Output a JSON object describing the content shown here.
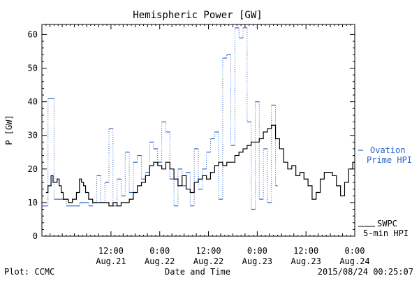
{
  "chart_data": {
    "type": "line",
    "title": "Hemispheric Power [GW]",
    "xlabel": "Date and Time",
    "ylabel": "P [GW]",
    "ylim": [
      0,
      63
    ],
    "yticks": [
      0,
      10,
      20,
      30,
      40,
      50,
      60
    ],
    "x_unit": "hours after 2015-08-20 19:00",
    "xlim": [
      0,
      77
    ],
    "xticks": [
      {
        "x": 17,
        "time": "12:00",
        "date": "Aug.21"
      },
      {
        "x": 29,
        "time": "0:00",
        "date": "Aug.22"
      },
      {
        "x": 41,
        "time": "12:00",
        "date": "Aug.22"
      },
      {
        "x": 53,
        "time": "0:00",
        "date": "Aug.23"
      },
      {
        "x": 65,
        "time": "12:00",
        "date": "Aug.23"
      },
      {
        "x": 77,
        "time": "0:00",
        "date": "Aug.24"
      }
    ],
    "grid": false,
    "legend_placement": "right",
    "series": [
      {
        "name": "Ovation Prime HPI",
        "label_lines": [
          "Ovation",
          "Prime HPI"
        ],
        "style": "dashed-blue steps with dotted risers",
        "color": "#2b64c8",
        "points": [
          [
            0,
            9
          ],
          [
            1.5,
            41
          ],
          [
            3,
            11
          ],
          [
            4.5,
            11
          ],
          [
            6,
            9
          ],
          [
            8,
            9
          ],
          [
            9.3,
            10
          ],
          [
            10.7,
            10
          ],
          [
            11.5,
            9
          ],
          [
            12.5,
            10
          ],
          [
            13.5,
            18
          ],
          [
            14.5,
            10
          ],
          [
            15.5,
            16
          ],
          [
            16.5,
            32
          ],
          [
            17.5,
            9
          ],
          [
            18.5,
            17
          ],
          [
            19.5,
            12
          ],
          [
            20.5,
            25
          ],
          [
            21.5,
            13
          ],
          [
            22.5,
            22
          ],
          [
            23.5,
            24
          ],
          [
            24.5,
            17
          ],
          [
            25.5,
            19
          ],
          [
            26.5,
            28
          ],
          [
            27.5,
            26
          ],
          [
            28.5,
            22
          ],
          [
            29.5,
            34
          ],
          [
            30.5,
            31
          ],
          [
            31.5,
            17
          ],
          [
            32.5,
            9
          ],
          [
            33.5,
            20
          ],
          [
            34.5,
            15
          ],
          [
            35.5,
            19
          ],
          [
            36.5,
            9
          ],
          [
            37.5,
            26
          ],
          [
            38.5,
            14
          ],
          [
            39.5,
            20
          ],
          [
            40.5,
            25
          ],
          [
            41.5,
            29
          ],
          [
            42.5,
            31
          ],
          [
            43.5,
            11
          ],
          [
            44.5,
            53
          ],
          [
            45.5,
            54
          ],
          [
            46.5,
            27
          ],
          [
            47.5,
            62
          ],
          [
            48.5,
            59
          ],
          [
            49.5,
            62
          ],
          [
            50.5,
            34
          ],
          [
            51.5,
            8
          ],
          [
            52.5,
            40
          ],
          [
            53.5,
            11
          ],
          [
            54.5,
            26
          ],
          [
            55.5,
            10
          ],
          [
            56.5,
            39
          ],
          [
            57.5,
            15
          ],
          [
            58,
            15
          ]
        ]
      },
      {
        "name": "SWPC 5-min HPI",
        "label_lines": [
          "SWPC",
          "5-min HPI"
        ],
        "style": "solid black line",
        "color": "#000000",
        "points": [
          [
            1,
            13
          ],
          [
            2,
            15
          ],
          [
            2.5,
            18
          ],
          [
            3,
            16
          ],
          [
            3.5,
            16
          ],
          [
            4,
            17
          ],
          [
            4.5,
            15
          ],
          [
            5,
            13
          ],
          [
            5.5,
            11
          ],
          [
            6,
            11
          ],
          [
            7,
            10
          ],
          [
            8,
            11
          ],
          [
            9,
            13
          ],
          [
            9.5,
            17
          ],
          [
            10,
            16
          ],
          [
            10.5,
            15
          ],
          [
            11,
            13
          ],
          [
            12,
            11
          ],
          [
            13,
            10
          ],
          [
            14,
            10
          ],
          [
            15,
            10
          ],
          [
            16,
            10
          ],
          [
            17,
            9
          ],
          [
            18,
            10
          ],
          [
            19,
            9
          ],
          [
            20,
            10
          ],
          [
            21,
            10
          ],
          [
            22,
            11
          ],
          [
            23,
            13
          ],
          [
            24,
            15
          ],
          [
            25,
            16
          ],
          [
            26,
            18
          ],
          [
            27,
            21
          ],
          [
            28,
            22
          ],
          [
            29,
            21
          ],
          [
            30,
            20
          ],
          [
            31,
            22
          ],
          [
            32,
            20
          ],
          [
            33,
            17
          ],
          [
            34,
            15
          ],
          [
            35,
            18
          ],
          [
            36,
            14
          ],
          [
            37,
            13
          ],
          [
            38,
            16
          ],
          [
            39,
            17
          ],
          [
            40,
            18
          ],
          [
            41,
            17
          ],
          [
            42,
            19
          ],
          [
            43,
            21
          ],
          [
            44,
            22
          ],
          [
            45,
            21
          ],
          [
            46,
            22
          ],
          [
            47,
            22
          ],
          [
            48,
            24
          ],
          [
            49,
            25
          ],
          [
            50,
            26
          ],
          [
            51,
            27
          ],
          [
            52,
            28
          ],
          [
            53,
            28
          ],
          [
            54,
            29
          ],
          [
            55,
            31
          ],
          [
            56,
            32
          ],
          [
            57,
            33
          ],
          [
            58,
            29
          ],
          [
            59,
            26
          ],
          [
            60,
            22
          ],
          [
            61,
            20
          ],
          [
            62,
            21
          ],
          [
            63,
            18
          ],
          [
            64,
            19
          ],
          [
            65,
            17
          ],
          [
            66,
            15
          ],
          [
            67,
            11
          ],
          [
            68,
            13
          ],
          [
            69,
            17
          ],
          [
            70,
            19
          ],
          [
            71,
            19
          ],
          [
            72,
            18
          ],
          [
            73,
            15
          ],
          [
            74,
            12
          ],
          [
            75,
            16
          ],
          [
            76,
            20
          ],
          [
            77,
            22
          ]
        ]
      }
    ],
    "footer_left": "Plot: CCMC",
    "footer_right": "2015/08/24 00:25:07"
  }
}
